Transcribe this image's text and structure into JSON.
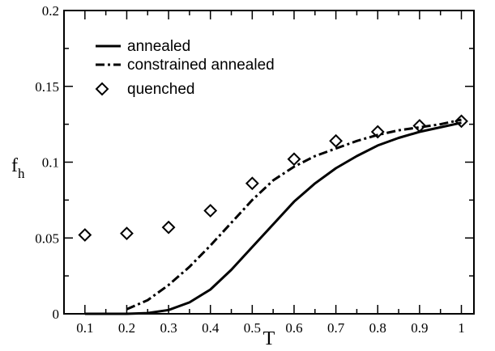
{
  "chart_data": {
    "type": "line",
    "xlabel": "T",
    "ylabel": "f",
    "ylabel_sub": "h",
    "xlim": [
      0.05,
      1.03
    ],
    "ylim": [
      0,
      0.2
    ],
    "x_ticks": [
      {
        "value": 0.1,
        "label": "0.1"
      },
      {
        "value": 0.2,
        "label": "0.2"
      },
      {
        "value": 0.3,
        "label": "0.3"
      },
      {
        "value": 0.4,
        "label": "0.4"
      },
      {
        "value": 0.5,
        "label": "0.5"
      },
      {
        "value": 0.6,
        "label": "0.6"
      },
      {
        "value": 0.7,
        "label": "0.7"
      },
      {
        "value": 0.8,
        "label": "0.8"
      },
      {
        "value": 0.9,
        "label": "0.9"
      },
      {
        "value": 1.0,
        "label": "1"
      }
    ],
    "y_ticks": [
      {
        "value": 0,
        "label": "0"
      },
      {
        "value": 0.05,
        "label": "0.05"
      },
      {
        "value": 0.1,
        "label": "0.1"
      },
      {
        "value": 0.15,
        "label": "0.15"
      },
      {
        "value": 0.2,
        "label": "0.2"
      }
    ],
    "legend_position": "top-left",
    "series": [
      {
        "name": "annealed",
        "style": "solid",
        "x": [
          0.1,
          0.15,
          0.2,
          0.25,
          0.3,
          0.35,
          0.4,
          0.45,
          0.5,
          0.55,
          0.6,
          0.65,
          0.7,
          0.75,
          0.8,
          0.85,
          0.9,
          0.95,
          1.0
        ],
        "y": [
          0.0,
          0.0,
          0.0,
          0.0005,
          0.0025,
          0.0075,
          0.016,
          0.029,
          0.044,
          0.059,
          0.074,
          0.086,
          0.096,
          0.104,
          0.111,
          0.116,
          0.12,
          0.123,
          0.126
        ]
      },
      {
        "name": "constrained annealed",
        "style": "dashdot",
        "x": [
          0.2,
          0.25,
          0.3,
          0.35,
          0.4,
          0.45,
          0.5,
          0.55,
          0.6,
          0.65,
          0.7,
          0.75,
          0.8,
          0.85,
          0.9,
          0.95,
          1.0
        ],
        "y": [
          0.003,
          0.009,
          0.019,
          0.031,
          0.045,
          0.06,
          0.075,
          0.088,
          0.097,
          0.104,
          0.109,
          0.114,
          0.118,
          0.121,
          0.123,
          0.125,
          0.128
        ]
      },
      {
        "name": "quenched",
        "style": "diamond",
        "x": [
          0.1,
          0.2,
          0.3,
          0.4,
          0.5,
          0.6,
          0.7,
          0.8,
          0.9,
          1.0
        ],
        "y": [
          0.052,
          0.053,
          0.057,
          0.068,
          0.086,
          0.102,
          0.114,
          0.12,
          0.124,
          0.127
        ]
      }
    ]
  }
}
